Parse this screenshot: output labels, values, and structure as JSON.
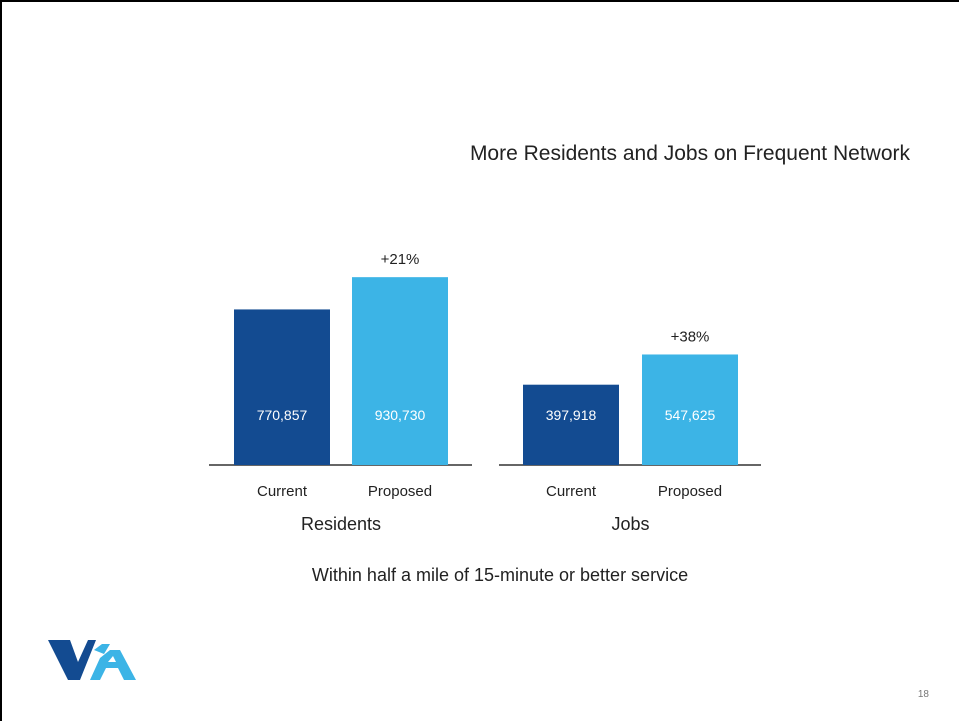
{
  "slide": {
    "title": "More Residents and Jobs on Frequent Network",
    "subtitle": "Within half a mile of 15-minute or better service",
    "page_number": "18",
    "logo": "vta-logo"
  },
  "colors": {
    "current": "#134b91",
    "proposed": "#3cb4e6",
    "axis": "#333333",
    "text": "#222222"
  },
  "chart_data": [
    {
      "type": "bar",
      "group_label": "Residents",
      "categories": [
        "Current",
        "Proposed"
      ],
      "values": [
        770857,
        930730
      ],
      "value_labels": [
        "770,857",
        "930,730"
      ],
      "change_label": "+21%",
      "ylim": [
        0,
        1100000
      ]
    },
    {
      "type": "bar",
      "group_label": "Jobs",
      "categories": [
        "Current",
        "Proposed"
      ],
      "values": [
        397918,
        547625
      ],
      "value_labels": [
        "397,918",
        "547,625"
      ],
      "change_label": "+38%",
      "ylim": [
        0,
        1100000
      ]
    }
  ]
}
